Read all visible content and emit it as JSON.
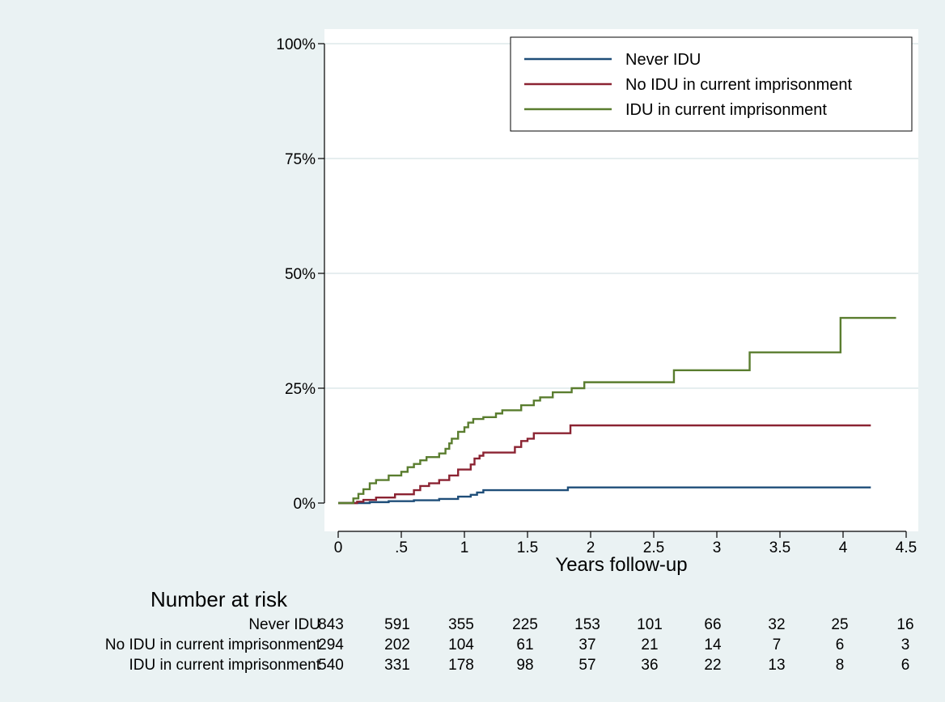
{
  "chart_data": {
    "type": "line",
    "step": true,
    "xlabel": "Years follow-up",
    "ylabel": "",
    "xlim": [
      0,
      4.5
    ],
    "ylim": [
      0,
      100
    ],
    "x_ticks": [
      {
        "v": 0,
        "label": "0"
      },
      {
        "v": 0.5,
        "label": ".5"
      },
      {
        "v": 1,
        "label": "1"
      },
      {
        "v": 1.5,
        "label": "1.5"
      },
      {
        "v": 2,
        "label": "2"
      },
      {
        "v": 2.5,
        "label": "2.5"
      },
      {
        "v": 3,
        "label": "3"
      },
      {
        "v": 3.5,
        "label": "3.5"
      },
      {
        "v": 4,
        "label": "4"
      },
      {
        "v": 4.5,
        "label": "4.5"
      }
    ],
    "y_ticks": [
      {
        "v": 0,
        "label": "0%"
      },
      {
        "v": 25,
        "label": "25%"
      },
      {
        "v": 50,
        "label": "50%"
      },
      {
        "v": 75,
        "label": "75%"
      },
      {
        "v": 100,
        "label": "100%"
      }
    ],
    "grid": true,
    "legend_position": "top-right",
    "series": [
      {
        "name": "Never IDU",
        "color": "#1f4e79",
        "points": [
          [
            0,
            0
          ],
          [
            0.25,
            0.2
          ],
          [
            0.4,
            0.4
          ],
          [
            0.6,
            0.6
          ],
          [
            0.8,
            0.9
          ],
          [
            0.95,
            1.4
          ],
          [
            1.05,
            1.8
          ],
          [
            1.1,
            2.3
          ],
          [
            1.15,
            2.8
          ],
          [
            1.8,
            2.8
          ],
          [
            1.82,
            3.4
          ],
          [
            4.22,
            3.4
          ]
        ]
      },
      {
        "name": "No IDU in current imprisonment",
        "color": "#8b2332",
        "points": [
          [
            0,
            0
          ],
          [
            0.13,
            0
          ],
          [
            0.15,
            0.3
          ],
          [
            0.2,
            0.7
          ],
          [
            0.3,
            1.2
          ],
          [
            0.45,
            1.9
          ],
          [
            0.6,
            2.8
          ],
          [
            0.65,
            3.7
          ],
          [
            0.72,
            4.3
          ],
          [
            0.8,
            5.0
          ],
          [
            0.88,
            6.0
          ],
          [
            0.95,
            7.3
          ],
          [
            1.05,
            8.4
          ],
          [
            1.08,
            9.7
          ],
          [
            1.12,
            10.3
          ],
          [
            1.15,
            11.0
          ],
          [
            1.4,
            12.2
          ],
          [
            1.45,
            13.5
          ],
          [
            1.5,
            14.0
          ],
          [
            1.55,
            15.2
          ],
          [
            1.83,
            15.2
          ],
          [
            1.84,
            16.9
          ],
          [
            4.22,
            16.9
          ]
        ]
      },
      {
        "name": "IDU in current imprisonment",
        "color": "#5a7d2f",
        "points": [
          [
            0,
            0
          ],
          [
            0.1,
            0
          ],
          [
            0.12,
            1.0
          ],
          [
            0.16,
            2.0
          ],
          [
            0.2,
            3.0
          ],
          [
            0.25,
            4.3
          ],
          [
            0.3,
            5.0
          ],
          [
            0.4,
            6.0
          ],
          [
            0.5,
            6.8
          ],
          [
            0.55,
            7.8
          ],
          [
            0.6,
            8.5
          ],
          [
            0.65,
            9.3
          ],
          [
            0.7,
            10.0
          ],
          [
            0.8,
            10.8
          ],
          [
            0.85,
            11.8
          ],
          [
            0.88,
            13.0
          ],
          [
            0.9,
            14.0
          ],
          [
            0.95,
            15.5
          ],
          [
            1.0,
            16.5
          ],
          [
            1.03,
            17.5
          ],
          [
            1.07,
            18.3
          ],
          [
            1.15,
            18.7
          ],
          [
            1.25,
            19.5
          ],
          [
            1.3,
            20.2
          ],
          [
            1.45,
            21.3
          ],
          [
            1.55,
            22.3
          ],
          [
            1.6,
            23.0
          ],
          [
            1.7,
            24.1
          ],
          [
            1.85,
            25.0
          ],
          [
            1.95,
            26.3
          ],
          [
            2.65,
            26.3
          ],
          [
            2.66,
            28.9
          ],
          [
            3.25,
            28.9
          ],
          [
            3.26,
            32.8
          ],
          [
            3.97,
            32.8
          ],
          [
            3.98,
            40.3
          ],
          [
            4.42,
            40.3
          ]
        ]
      }
    ],
    "risk_table": {
      "title": "Number at risk",
      "rows": [
        {
          "label": "Never IDU",
          "values": [
            843,
            591,
            355,
            225,
            153,
            101,
            66,
            32,
            25,
            16
          ]
        },
        {
          "label": "No IDU in current imprisonment",
          "values": [
            294,
            202,
            104,
            61,
            37,
            21,
            14,
            7,
            6,
            3
          ]
        },
        {
          "label": "IDU in current imprisonment",
          "values": [
            540,
            331,
            178,
            98,
            57,
            36,
            22,
            13,
            8,
            6
          ]
        }
      ]
    }
  }
}
